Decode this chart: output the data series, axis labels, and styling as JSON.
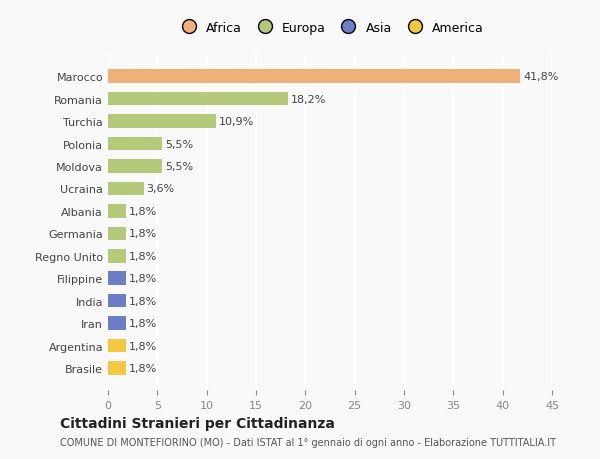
{
  "categories": [
    "Brasile",
    "Argentina",
    "Iran",
    "India",
    "Filippine",
    "Regno Unito",
    "Germania",
    "Albania",
    "Ucraina",
    "Moldova",
    "Polonia",
    "Turchia",
    "Romania",
    "Marocco"
  ],
  "values": [
    1.8,
    1.8,
    1.8,
    1.8,
    1.8,
    1.8,
    1.8,
    1.8,
    3.6,
    5.5,
    5.5,
    10.9,
    18.2,
    41.8
  ],
  "colors": [
    "#f5c842",
    "#f5c842",
    "#6b7fc4",
    "#6b7fc4",
    "#6b7fc4",
    "#b5c97a",
    "#b5c97a",
    "#b5c97a",
    "#b5c97a",
    "#b5c97a",
    "#b5c97a",
    "#b5c97a",
    "#b5c97a",
    "#f0b07a"
  ],
  "labels": [
    "1,8%",
    "1,8%",
    "1,8%",
    "1,8%",
    "1,8%",
    "1,8%",
    "1,8%",
    "1,8%",
    "3,6%",
    "5,5%",
    "5,5%",
    "10,9%",
    "18,2%",
    "41,8%"
  ],
  "legend": [
    {
      "label": "Africa",
      "color": "#f0b07a"
    },
    {
      "label": "Europa",
      "color": "#b5c97a"
    },
    {
      "label": "Asia",
      "color": "#6b7fc4"
    },
    {
      "label": "America",
      "color": "#f5c842"
    }
  ],
  "title": "Cittadini Stranieri per Cittadinanza",
  "subtitle": "COMUNE DI MONTEFIORINO (MO) - Dati ISTAT al 1° gennaio di ogni anno - Elaborazione TUTTITALIA.IT",
  "xlim": [
    0,
    45
  ],
  "xticks": [
    0,
    5,
    10,
    15,
    20,
    25,
    30,
    35,
    40,
    45
  ],
  "background_color": "#f9f9f9",
  "grid_color": "#ffffff",
  "bar_height": 0.6
}
